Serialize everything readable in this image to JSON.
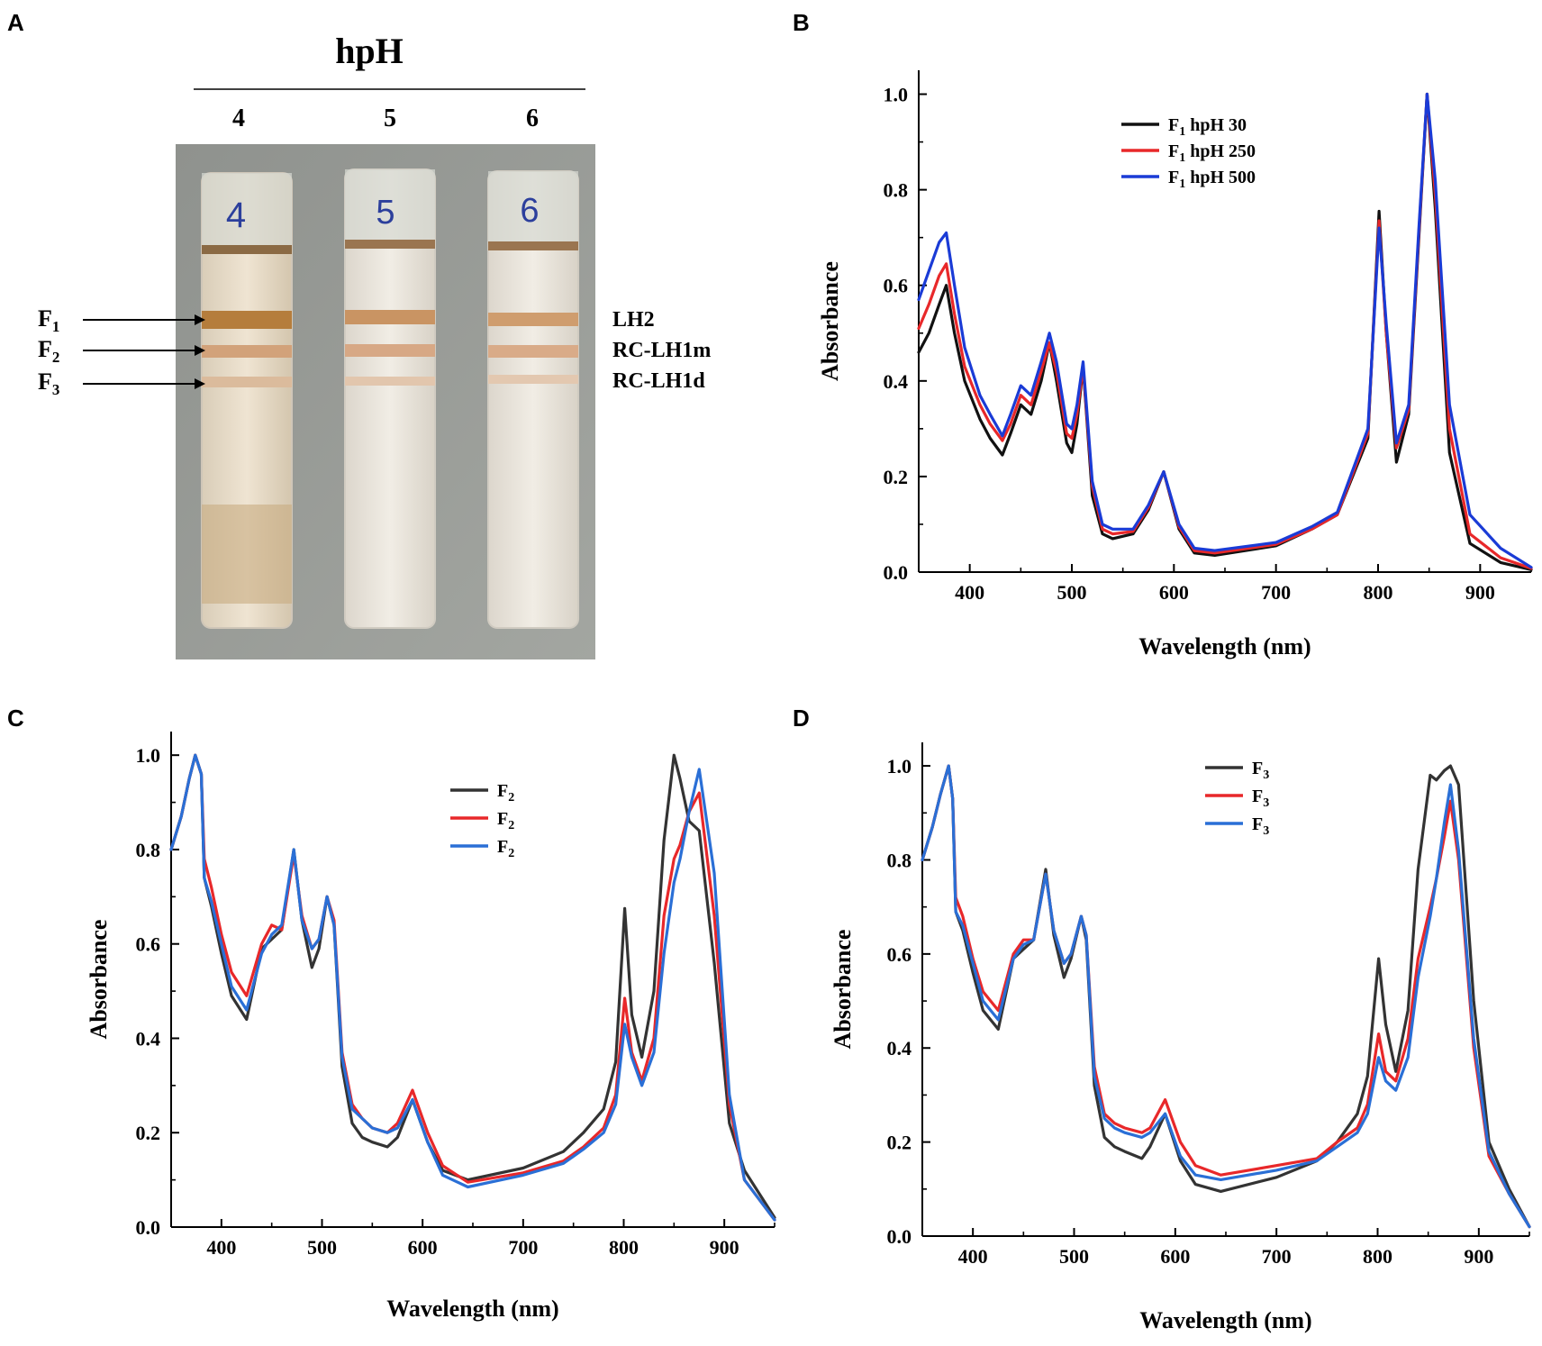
{
  "panel_a": {
    "letter": "A",
    "title": "hpH",
    "lanes": [
      "4",
      "5",
      "6"
    ],
    "tube_marks": [
      "4",
      "5",
      "6"
    ],
    "fractions": [
      {
        "base": "F",
        "sub": "1"
      },
      {
        "base": "F",
        "sub": "2"
      },
      {
        "base": "F",
        "sub": "3"
      }
    ],
    "band_labels": [
      "LH2",
      "RC-LH1m",
      "RC-LH1d"
    ]
  },
  "chart_data": [
    {
      "panel": "B",
      "type": "line",
      "xlabel": "Wavelength (nm)",
      "ylabel": "Absorbance",
      "xlim": [
        350,
        950
      ],
      "ylim": [
        0,
        1.05
      ],
      "xticks": [
        400,
        500,
        600,
        700,
        800,
        900
      ],
      "yticks": [
        0.0,
        0.2,
        0.4,
        0.6,
        0.8,
        1.0
      ],
      "ytick_labels": [
        "0.0",
        "0.2",
        "0.4",
        "0.6",
        "0.8",
        "1.0"
      ],
      "legend_position": "top-center",
      "series": [
        {
          "name": "F1 hpH 30",
          "label_base": "F",
          "label_sub": "1",
          "label_rest": " hpH 30",
          "color": "#111111",
          "x": [
            350,
            360,
            370,
            377,
            385,
            395,
            410,
            420,
            432,
            440,
            450,
            460,
            470,
            478,
            485,
            495,
            500,
            505,
            511,
            520,
            530,
            540,
            560,
            575,
            590,
            605,
            620,
            640,
            700,
            735,
            760,
            790,
            801,
            808,
            818,
            830,
            840,
            848,
            856,
            870,
            890,
            920,
            950
          ],
          "y": [
            0.46,
            0.5,
            0.56,
            0.6,
            0.5,
            0.4,
            0.32,
            0.28,
            0.245,
            0.29,
            0.35,
            0.33,
            0.4,
            0.48,
            0.4,
            0.27,
            0.25,
            0.31,
            0.43,
            0.16,
            0.08,
            0.07,
            0.08,
            0.13,
            0.21,
            0.09,
            0.04,
            0.035,
            0.055,
            0.09,
            0.12,
            0.28,
            0.755,
            0.5,
            0.23,
            0.33,
            0.7,
            1.0,
            0.76,
            0.25,
            0.06,
            0.02,
            0.005
          ]
        },
        {
          "name": "F1 hpH 250",
          "label_base": "F",
          "label_sub": "1",
          "label_rest": " hpH 250",
          "color": "#e8282a",
          "x": [
            350,
            360,
            370,
            377,
            385,
            395,
            410,
            420,
            432,
            440,
            450,
            460,
            470,
            478,
            485,
            495,
            500,
            505,
            511,
            520,
            530,
            540,
            560,
            575,
            590,
            605,
            620,
            640,
            700,
            735,
            760,
            790,
            801,
            808,
            818,
            830,
            840,
            848,
            856,
            870,
            890,
            920,
            950
          ],
          "y": [
            0.51,
            0.56,
            0.62,
            0.645,
            0.54,
            0.43,
            0.35,
            0.31,
            0.275,
            0.31,
            0.37,
            0.35,
            0.42,
            0.48,
            0.42,
            0.29,
            0.28,
            0.33,
            0.43,
            0.18,
            0.09,
            0.08,
            0.085,
            0.135,
            0.21,
            0.095,
            0.045,
            0.04,
            0.058,
            0.09,
            0.12,
            0.29,
            0.735,
            0.5,
            0.26,
            0.34,
            0.71,
            1.0,
            0.79,
            0.3,
            0.08,
            0.03,
            0.008
          ]
        },
        {
          "name": "F1 hpH 500",
          "label_base": "F",
          "label_sub": "1",
          "label_rest": " hpH 500",
          "color": "#1a3bd6",
          "x": [
            350,
            360,
            370,
            377,
            385,
            395,
            410,
            420,
            432,
            440,
            450,
            460,
            470,
            478,
            485,
            495,
            500,
            505,
            511,
            520,
            530,
            540,
            560,
            575,
            590,
            605,
            620,
            640,
            700,
            735,
            760,
            790,
            801,
            808,
            818,
            830,
            840,
            848,
            856,
            870,
            890,
            920,
            950
          ],
          "y": [
            0.57,
            0.63,
            0.69,
            0.71,
            0.6,
            0.47,
            0.37,
            0.33,
            0.285,
            0.33,
            0.39,
            0.37,
            0.44,
            0.5,
            0.44,
            0.31,
            0.3,
            0.35,
            0.44,
            0.19,
            0.1,
            0.09,
            0.09,
            0.14,
            0.21,
            0.1,
            0.05,
            0.045,
            0.062,
            0.095,
            0.125,
            0.3,
            0.72,
            0.52,
            0.27,
            0.35,
            0.72,
            1.0,
            0.82,
            0.35,
            0.12,
            0.05,
            0.01
          ]
        }
      ]
    },
    {
      "panel": "C",
      "type": "line",
      "xlabel": "Wavelength (nm)",
      "ylabel": "Absorbance",
      "xlim": [
        350,
        950
      ],
      "ylim": [
        0,
        1.05
      ],
      "xticks": [
        400,
        500,
        600,
        700,
        800,
        900
      ],
      "yticks": [
        0.0,
        0.2,
        0.4,
        0.6,
        0.8,
        1.0
      ],
      "ytick_labels": [
        "0.0",
        "0.2",
        "0.4",
        "0.6",
        "0.8",
        "1.0"
      ],
      "legend_position": "top-center",
      "series": [
        {
          "name": "F2",
          "label_base": "F",
          "label_sub": "2",
          "label_rest": "",
          "color": "#333333",
          "x": [
            350,
            360,
            368,
            374,
            380,
            383,
            390,
            400,
            410,
            425,
            440,
            450,
            460,
            472,
            480,
            490,
            497,
            505,
            512,
            520,
            530,
            540,
            550,
            565,
            575,
            590,
            605,
            620,
            645,
            700,
            740,
            760,
            780,
            792,
            801,
            808,
            818,
            830,
            840,
            850,
            856,
            865,
            875,
            890,
            905,
            920,
            950
          ],
          "y": [
            0.8,
            0.87,
            0.95,
            1.0,
            0.96,
            0.74,
            0.68,
            0.58,
            0.49,
            0.44,
            0.59,
            0.61,
            0.63,
            0.8,
            0.65,
            0.55,
            0.59,
            0.7,
            0.64,
            0.34,
            0.22,
            0.19,
            0.18,
            0.17,
            0.19,
            0.27,
            0.18,
            0.12,
            0.1,
            0.125,
            0.16,
            0.2,
            0.25,
            0.35,
            0.675,
            0.45,
            0.36,
            0.5,
            0.82,
            1.0,
            0.95,
            0.86,
            0.84,
            0.56,
            0.22,
            0.12,
            0.02
          ]
        },
        {
          "name": "F2",
          "label_base": "F",
          "label_sub": "2",
          "label_rest": "",
          "color": "#e8282a",
          "x": [
            350,
            360,
            368,
            374,
            380,
            383,
            390,
            400,
            410,
            425,
            440,
            450,
            460,
            472,
            480,
            490,
            497,
            505,
            512,
            520,
            530,
            540,
            550,
            565,
            575,
            590,
            605,
            620,
            645,
            700,
            740,
            760,
            780,
            792,
            801,
            808,
            818,
            830,
            840,
            850,
            856,
            865,
            875,
            890,
            905,
            920,
            950
          ],
          "y": [
            0.8,
            0.87,
            0.95,
            1.0,
            0.96,
            0.78,
            0.72,
            0.62,
            0.54,
            0.49,
            0.6,
            0.64,
            0.63,
            0.79,
            0.66,
            0.59,
            0.61,
            0.7,
            0.65,
            0.37,
            0.26,
            0.23,
            0.21,
            0.2,
            0.22,
            0.29,
            0.2,
            0.13,
            0.095,
            0.115,
            0.14,
            0.17,
            0.21,
            0.28,
            0.485,
            0.37,
            0.31,
            0.4,
            0.66,
            0.78,
            0.81,
            0.88,
            0.92,
            0.66,
            0.26,
            0.1,
            0.015
          ]
        },
        {
          "name": "F2",
          "label_base": "F",
          "label_sub": "2",
          "label_rest": "",
          "color": "#2a6fd6",
          "x": [
            350,
            360,
            368,
            374,
            380,
            383,
            390,
            400,
            410,
            425,
            440,
            450,
            460,
            472,
            480,
            490,
            497,
            505,
            512,
            520,
            530,
            540,
            550,
            565,
            575,
            590,
            605,
            620,
            645,
            700,
            740,
            760,
            780,
            792,
            801,
            808,
            818,
            830,
            840,
            850,
            856,
            865,
            875,
            890,
            905,
            920,
            950
          ],
          "y": [
            0.8,
            0.87,
            0.95,
            1.0,
            0.96,
            0.74,
            0.69,
            0.6,
            0.51,
            0.46,
            0.58,
            0.62,
            0.64,
            0.8,
            0.65,
            0.59,
            0.61,
            0.7,
            0.64,
            0.36,
            0.25,
            0.23,
            0.21,
            0.2,
            0.21,
            0.27,
            0.18,
            0.11,
            0.085,
            0.11,
            0.135,
            0.165,
            0.2,
            0.26,
            0.43,
            0.36,
            0.3,
            0.37,
            0.58,
            0.73,
            0.78,
            0.88,
            0.97,
            0.75,
            0.28,
            0.1,
            0.015
          ]
        }
      ]
    },
    {
      "panel": "D",
      "type": "line",
      "xlabel": "Wavelength (nm)",
      "ylabel": "Absorbance",
      "xlim": [
        350,
        950
      ],
      "ylim": [
        0,
        1.05
      ],
      "xticks": [
        400,
        500,
        600,
        700,
        800,
        900
      ],
      "yticks": [
        0.0,
        0.2,
        0.4,
        0.6,
        0.8,
        1.0
      ],
      "ytick_labels": [
        "0.0",
        "0.2",
        "0.4",
        "0.6",
        "0.8",
        "1.0"
      ],
      "legend_position": "top-center",
      "series": [
        {
          "name": "F3",
          "label_base": "F",
          "label_sub": "3",
          "label_rest": "",
          "color": "#333333",
          "x": [
            350,
            360,
            368,
            376,
            380,
            383,
            390,
            400,
            410,
            425,
            440,
            450,
            460,
            472,
            480,
            490,
            497,
            507,
            512,
            520,
            530,
            540,
            550,
            567,
            575,
            590,
            605,
            620,
            645,
            700,
            740,
            760,
            780,
            790,
            801,
            808,
            818,
            830,
            840,
            852,
            858,
            866,
            872,
            880,
            895,
            910,
            930,
            950
          ],
          "y": [
            0.8,
            0.87,
            0.94,
            1.0,
            0.93,
            0.69,
            0.65,
            0.56,
            0.48,
            0.44,
            0.59,
            0.61,
            0.63,
            0.78,
            0.64,
            0.55,
            0.59,
            0.68,
            0.63,
            0.32,
            0.21,
            0.19,
            0.18,
            0.165,
            0.19,
            0.26,
            0.16,
            0.11,
            0.095,
            0.125,
            0.16,
            0.2,
            0.26,
            0.34,
            0.59,
            0.45,
            0.35,
            0.48,
            0.78,
            0.98,
            0.97,
            0.99,
            1.0,
            0.96,
            0.5,
            0.2,
            0.1,
            0.02
          ]
        },
        {
          "name": "F3",
          "label_base": "F",
          "label_sub": "3",
          "label_rest": "",
          "color": "#e8282a",
          "x": [
            350,
            360,
            368,
            376,
            380,
            383,
            390,
            400,
            410,
            425,
            440,
            450,
            460,
            472,
            480,
            490,
            497,
            507,
            512,
            520,
            530,
            540,
            550,
            567,
            575,
            590,
            605,
            620,
            645,
            700,
            740,
            760,
            780,
            790,
            801,
            808,
            818,
            830,
            840,
            852,
            858,
            866,
            872,
            880,
            895,
            910,
            930,
            950
          ],
          "y": [
            0.8,
            0.87,
            0.94,
            1.0,
            0.93,
            0.72,
            0.68,
            0.59,
            0.52,
            0.48,
            0.6,
            0.63,
            0.63,
            0.77,
            0.65,
            0.58,
            0.6,
            0.68,
            0.64,
            0.36,
            0.26,
            0.24,
            0.23,
            0.22,
            0.23,
            0.29,
            0.2,
            0.15,
            0.13,
            0.15,
            0.165,
            0.2,
            0.23,
            0.28,
            0.43,
            0.35,
            0.33,
            0.42,
            0.59,
            0.7,
            0.76,
            0.85,
            0.925,
            0.8,
            0.4,
            0.17,
            0.09,
            0.02
          ]
        },
        {
          "name": "F3",
          "label_base": "F",
          "label_sub": "3",
          "label_rest": "",
          "color": "#2a6fd6",
          "x": [
            350,
            360,
            368,
            376,
            380,
            383,
            390,
            400,
            410,
            425,
            440,
            450,
            460,
            472,
            480,
            490,
            497,
            507,
            512,
            520,
            530,
            540,
            550,
            567,
            575,
            590,
            605,
            620,
            645,
            700,
            740,
            760,
            780,
            790,
            801,
            808,
            818,
            830,
            840,
            852,
            858,
            866,
            872,
            880,
            895,
            910,
            930,
            950
          ],
          "y": [
            0.8,
            0.87,
            0.94,
            1.0,
            0.93,
            0.69,
            0.66,
            0.58,
            0.5,
            0.46,
            0.59,
            0.62,
            0.63,
            0.77,
            0.65,
            0.58,
            0.6,
            0.68,
            0.64,
            0.34,
            0.25,
            0.23,
            0.22,
            0.21,
            0.22,
            0.26,
            0.17,
            0.13,
            0.12,
            0.14,
            0.16,
            0.19,
            0.22,
            0.26,
            0.38,
            0.33,
            0.31,
            0.38,
            0.55,
            0.68,
            0.76,
            0.88,
            0.96,
            0.82,
            0.42,
            0.18,
            0.09,
            0.02
          ]
        }
      ]
    }
  ]
}
